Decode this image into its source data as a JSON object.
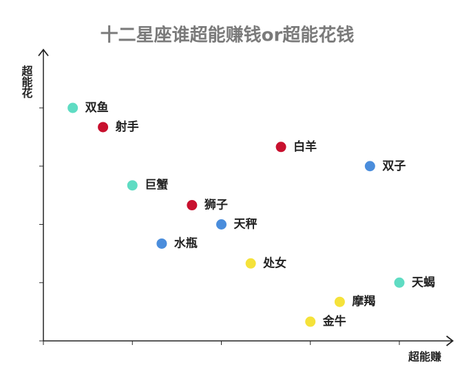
{
  "chart_data": {
    "type": "scatter",
    "title": "十二星座谁超能赚钱or超能花钱",
    "x_label": "超能赚",
    "y_label": "超能花",
    "labels": [
      "双鱼",
      "射手",
      "白羊",
      "双子",
      "巨蟹",
      "狮子",
      "天秤",
      "水瓶",
      "处女",
      "天蝎",
      "摩羯",
      "金牛"
    ],
    "x": [
      0.33,
      0.67,
      2.67,
      3.67,
      1.0,
      1.67,
      2.0,
      1.33,
      2.33,
      4.0,
      3.33,
      3.0
    ],
    "values": [
      4.0,
      3.67,
      3.33,
      3.0,
      2.67,
      2.33,
      2.0,
      1.67,
      1.33,
      1.0,
      0.67,
      0.33
    ],
    "colors": [
      "#5fdcc3",
      "#c8102e",
      "#c8102e",
      "#4a8ddc",
      "#5fdcc3",
      "#c8102e",
      "#4a8ddc",
      "#4a8ddc",
      "#f5e23a",
      "#5fdcc3",
      "#f5e23a",
      "#f5e23a"
    ],
    "xlim": [
      0,
      4.6
    ],
    "ylim": [
      0,
      5
    ],
    "xticks": [
      0,
      1,
      2,
      3,
      4
    ],
    "yticks": [
      0,
      1,
      2,
      3,
      4
    ]
  }
}
